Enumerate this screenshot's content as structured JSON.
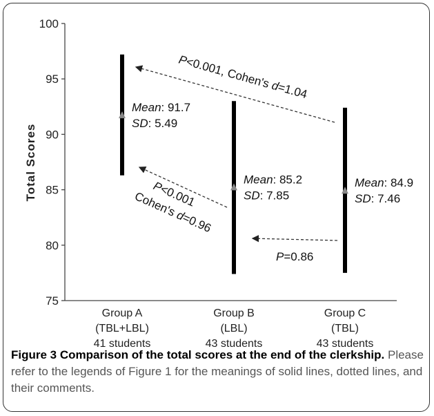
{
  "chart_data": {
    "type": "range",
    "ylabel": "Total   Scores",
    "ylim": [
      75,
      100
    ],
    "yticks": [
      "75",
      "80",
      "85",
      "90",
      "95",
      "100"
    ],
    "groups": [
      {
        "label": [
          "Group A",
          "(TBL+LBL)",
          "41 students"
        ],
        "min": 86.3,
        "max": 97.2,
        "mean_value": 91.7,
        "mean_text": ": 91.7",
        "sd_text": ": 5.49"
      },
      {
        "label": [
          "Group B",
          "(LBL)",
          "43 students"
        ],
        "min": 77.4,
        "max": 93.0,
        "mean_value": 85.2,
        "mean_text": ": 85.2",
        "sd_text": ": 7.85"
      },
      {
        "label": [
          "Group C",
          "(TBL)",
          "43 students"
        ],
        "min": 77.5,
        "max": 92.4,
        "mean_value": 84.9,
        "mean_text": ": 84.9",
        "sd_text": ": 7.46"
      }
    ],
    "stat_labels": {
      "mean": "Mean",
      "sd": "SD"
    },
    "annotations": {
      "ac": {
        "p": "P",
        "p_rest": "<0.001, Cohen's ",
        "d": "d",
        "d_rest": "=1.04"
      },
      "ab": {
        "p": "P",
        "p_rest": "<0.001",
        "cohen": "Cohen's ",
        "d": "d",
        "d_rest": "=0.96"
      },
      "bc": {
        "p": "P",
        "p_rest": "=0.86"
      }
    }
  },
  "caption": {
    "bold": "Figure 3 Comparison of the total scores at the end of the clerkship.",
    "text": " Please refer to the legends of Figure 1 for the meanings of solid lines, dotted lines, and their comments."
  }
}
